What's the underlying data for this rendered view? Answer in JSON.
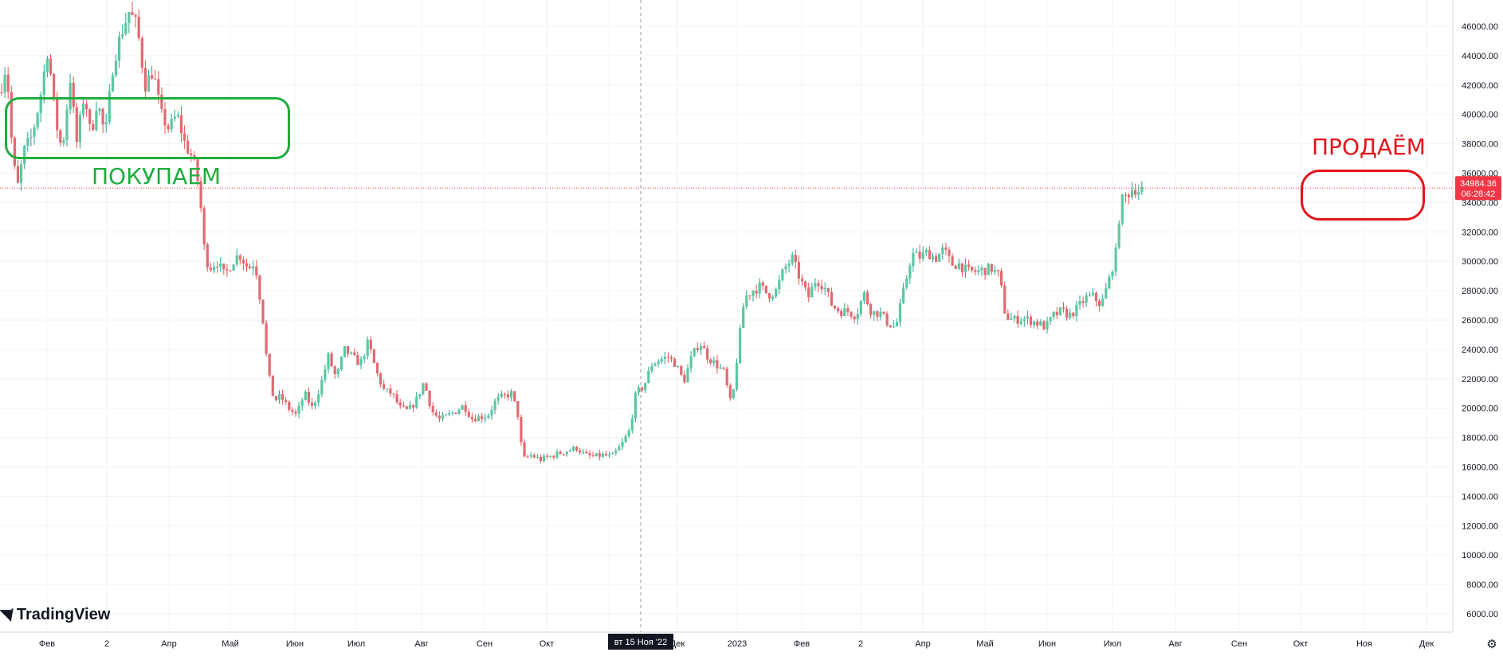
{
  "brand": {
    "name": "TradingView"
  },
  "chart_data": {
    "type": "candlestick",
    "y_ticks": [
      6000,
      8000,
      10000,
      12000,
      14000,
      16000,
      18000,
      20000,
      22000,
      24000,
      26000,
      28000,
      30000,
      32000,
      34000,
      36000,
      38000,
      40000,
      42000,
      44000,
      46000
    ],
    "y_tick_labels": [
      "6000.00",
      "8000.00",
      "10000.00",
      "12000.00",
      "14000.00",
      "16000.00",
      "18000.00",
      "20000.00",
      "22000.00",
      "24000.00",
      "26000.00",
      "28000.00",
      "30000.00",
      "32000.00",
      "34000.00",
      "36000.00",
      "38000.00",
      "40000.00",
      "42000.00",
      "44000.00",
      "46000.00"
    ],
    "x_tick_labels": [
      "Фев",
      "2",
      "Апр",
      "Май",
      "Июн",
      "Июл",
      "Авг",
      "Сен",
      "Окт",
      "Ноя",
      "Дек",
      "2023",
      "Фев",
      "2",
      "Апр",
      "Май",
      "Июн",
      "Июл",
      "Авг",
      "Сен",
      "Окт",
      "Ноя",
      "Дек"
    ],
    "crosshair_label": "вт 15 Ноя '22",
    "last_price": {
      "value": 34984.36,
      "label": "34984.36",
      "countdown": "06:28:42"
    },
    "colors": {
      "up": "#26a69a",
      "down": "#ef5350",
      "up_body": "#5cc8a0",
      "down_body": "#e06a72",
      "grid": "#f0f3fa",
      "price_line": "#f23645"
    },
    "anchor_path": [
      [
        0,
        41500
      ],
      [
        8,
        43500
      ],
      [
        16,
        37000
      ],
      [
        22,
        35000
      ],
      [
        30,
        37500
      ],
      [
        40,
        38500
      ],
      [
        50,
        41000
      ],
      [
        60,
        44500
      ],
      [
        70,
        39500
      ],
      [
        78,
        37500
      ],
      [
        88,
        42500
      ],
      [
        96,
        38000
      ],
      [
        106,
        41500
      ],
      [
        114,
        38500
      ],
      [
        122,
        41000
      ],
      [
        132,
        38500
      ],
      [
        142,
        43500
      ],
      [
        152,
        45500
      ],
      [
        162,
        47000
      ],
      [
        172,
        46000
      ],
      [
        182,
        42000
      ],
      [
        192,
        43000
      ],
      [
        202,
        40000
      ],
      [
        212,
        39000
      ],
      [
        222,
        40000
      ],
      [
        232,
        38000
      ],
      [
        242,
        37000
      ],
      [
        250,
        35000
      ],
      [
        256,
        31000
      ],
      [
        262,
        29500
      ],
      [
        272,
        30000
      ],
      [
        282,
        29000
      ],
      [
        292,
        30000
      ],
      [
        300,
        30500
      ],
      [
        312,
        29500
      ],
      [
        320,
        30000
      ],
      [
        330,
        26000
      ],
      [
        336,
        22500
      ],
      [
        344,
        20500
      ],
      [
        352,
        20800
      ],
      [
        362,
        20000
      ],
      [
        372,
        19500
      ],
      [
        382,
        21000
      ],
      [
        392,
        20000
      ],
      [
        402,
        21500
      ],
      [
        412,
        23500
      ],
      [
        422,
        22000
      ],
      [
        432,
        24000
      ],
      [
        442,
        23500
      ],
      [
        452,
        23000
      ],
      [
        462,
        24500
      ],
      [
        472,
        22500
      ],
      [
        482,
        21200
      ],
      [
        492,
        21000
      ],
      [
        502,
        20000
      ],
      [
        512,
        19800
      ],
      [
        522,
        20500
      ],
      [
        532,
        21800
      ],
      [
        542,
        19800
      ],
      [
        552,
        19200
      ],
      [
        562,
        19500
      ],
      [
        572,
        19800
      ],
      [
        582,
        20200
      ],
      [
        592,
        19300
      ],
      [
        602,
        19400
      ],
      [
        612,
        19500
      ],
      [
        622,
        20500
      ],
      [
        632,
        20800
      ],
      [
        642,
        21000
      ],
      [
        650,
        19500
      ],
      [
        656,
        16500
      ],
      [
        666,
        16800
      ],
      [
        678,
        16500
      ],
      [
        690,
        16700
      ],
      [
        700,
        16900
      ],
      [
        712,
        17100
      ],
      [
        724,
        17300
      ],
      [
        734,
        16800
      ],
      [
        744,
        16700
      ],
      [
        756,
        16800
      ],
      [
        768,
        16700
      ],
      [
        780,
        17500
      ],
      [
        790,
        18500
      ],
      [
        798,
        21000
      ],
      [
        808,
        21500
      ],
      [
        818,
        23000
      ],
      [
        828,
        23300
      ],
      [
        838,
        23500
      ],
      [
        848,
        23000
      ],
      [
        858,
        21800
      ],
      [
        868,
        23500
      ],
      [
        878,
        24500
      ],
      [
        888,
        23500
      ],
      [
        898,
        23000
      ],
      [
        908,
        22500
      ],
      [
        918,
        20000
      ],
      [
        926,
        24000
      ],
      [
        934,
        27500
      ],
      [
        944,
        28000
      ],
      [
        954,
        28300
      ],
      [
        964,
        27700
      ],
      [
        974,
        28000
      ],
      [
        984,
        29500
      ],
      [
        994,
        30200
      ],
      [
        1004,
        28800
      ],
      [
        1014,
        27500
      ],
      [
        1024,
        28800
      ],
      [
        1034,
        28300
      ],
      [
        1044,
        27000
      ],
      [
        1054,
        26600
      ],
      [
        1064,
        26600
      ],
      [
        1074,
        26300
      ],
      [
        1084,
        27800
      ],
      [
        1094,
        26500
      ],
      [
        1104,
        26500
      ],
      [
        1114,
        25800
      ],
      [
        1124,
        25500
      ],
      [
        1134,
        28000
      ],
      [
        1144,
        30500
      ],
      [
        1154,
        30300
      ],
      [
        1164,
        30600
      ],
      [
        1174,
        30200
      ],
      [
        1184,
        30800
      ],
      [
        1194,
        29800
      ],
      [
        1204,
        29800
      ],
      [
        1214,
        29300
      ],
      [
        1224,
        29300
      ],
      [
        1234,
        29400
      ],
      [
        1244,
        29500
      ],
      [
        1254,
        29000
      ],
      [
        1262,
        26200
      ],
      [
        1272,
        26000
      ],
      [
        1282,
        26100
      ],
      [
        1292,
        26000
      ],
      [
        1302,
        25800
      ],
      [
        1312,
        25500
      ],
      [
        1322,
        26300
      ],
      [
        1332,
        26600
      ],
      [
        1342,
        26300
      ],
      [
        1352,
        26800
      ],
      [
        1362,
        27500
      ],
      [
        1372,
        27600
      ],
      [
        1382,
        27000
      ],
      [
        1392,
        28800
      ],
      [
        1400,
        30500
      ],
      [
        1406,
        34000
      ],
      [
        1414,
        34500
      ],
      [
        1422,
        35000
      ],
      [
        1430,
        34800
      ],
      [
        1436,
        34984
      ]
    ]
  },
  "annotations": {
    "buy_label": "ПОКУПАЕМ",
    "sell_label": "ПРОДАЁМ",
    "buy_color": "#1fad3e",
    "sell_color": "#e3141c"
  },
  "icons": {
    "settings": "gear-icon",
    "logo": "tradingview-logo-icon"
  }
}
